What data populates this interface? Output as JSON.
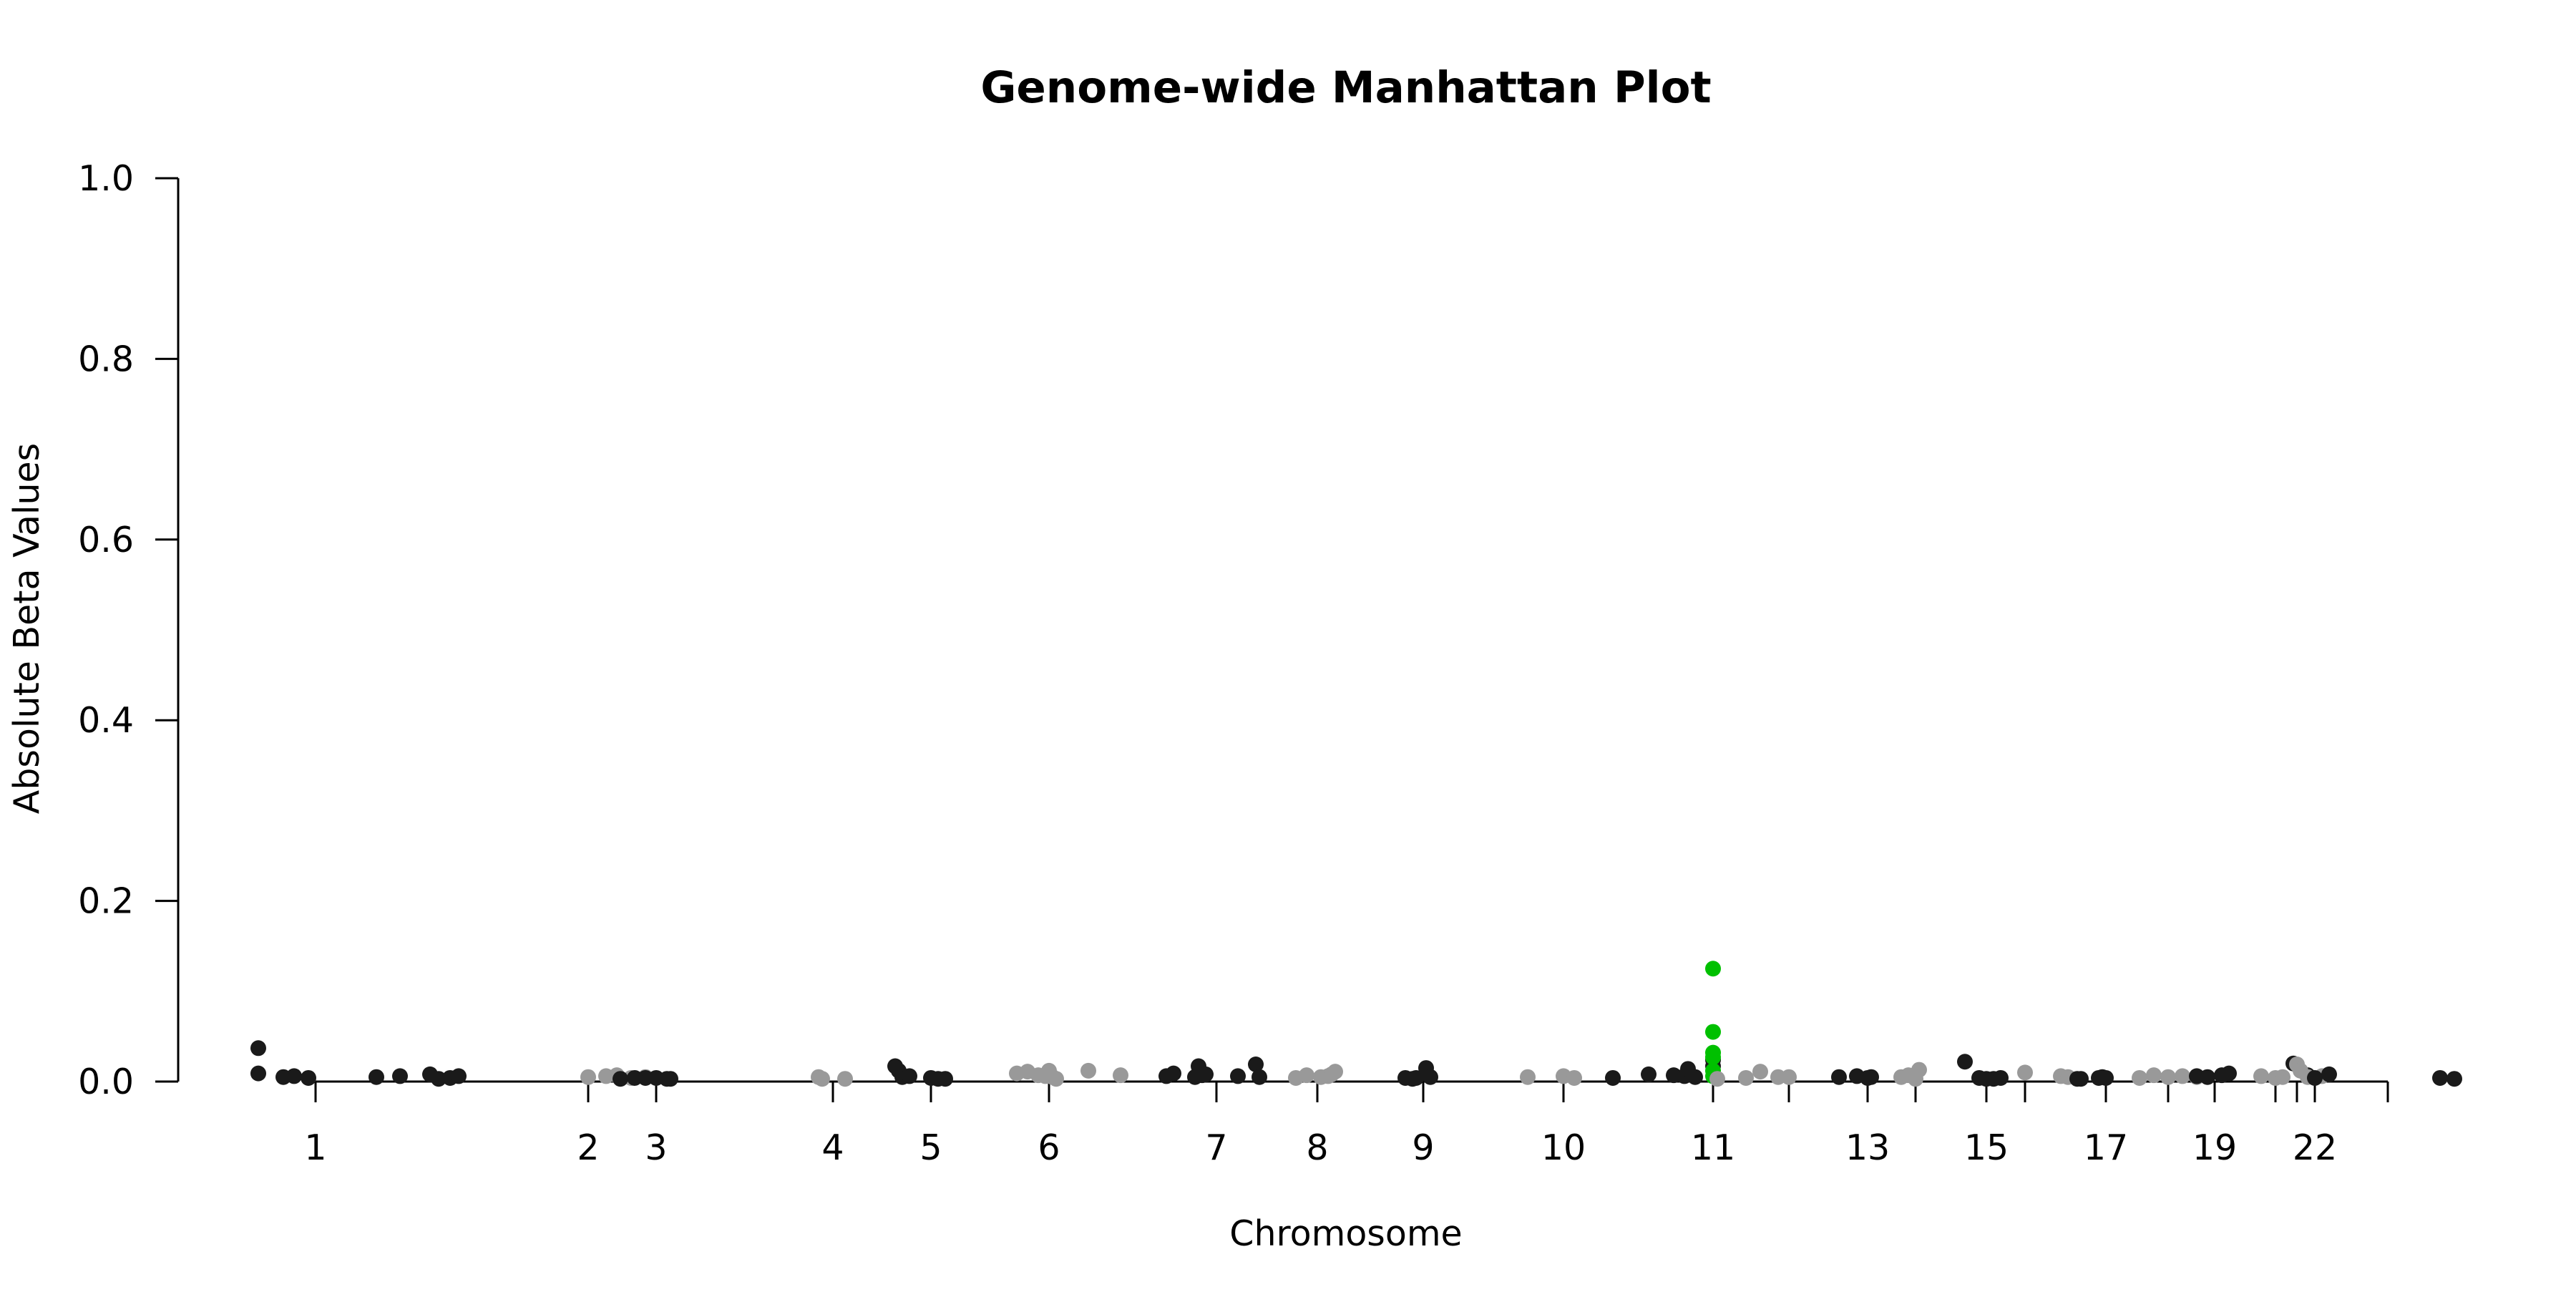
{
  "chart_data": {
    "type": "scatter",
    "title": "Genome-wide Manhattan Plot",
    "xlabel": "Chromosome",
    "ylabel": "Absolute Beta Values",
    "ylim": [
      0,
      1
    ],
    "y_ticks": [
      "0.0",
      "0.2",
      "0.4",
      "0.6",
      "0.8",
      "1.0"
    ],
    "x_tick_labels": [
      "1",
      "2",
      "3",
      "4",
      "5",
      "6",
      "7",
      "8",
      "9",
      "10",
      "11",
      "13",
      "15",
      "17",
      "19",
      "22"
    ],
    "x_tick_marks": 22,
    "grid": false,
    "legend": "none",
    "colors": {
      "odd_chromosomes": "#1a1a1a",
      "even_chromosomes": "#999999",
      "highlight": "#00c000"
    },
    "points": [
      {
        "chr": "1",
        "y": 0.037,
        "group": "odd"
      },
      {
        "chr": "1",
        "y": 0.009,
        "group": "odd"
      },
      {
        "chr": "1",
        "y": 0.005,
        "group": "odd"
      },
      {
        "chr": "1",
        "y": 0.006,
        "group": "odd"
      },
      {
        "chr": "1",
        "y": 0.004,
        "group": "odd"
      },
      {
        "chr": "1",
        "y": 0.005,
        "group": "odd"
      },
      {
        "chr": "1",
        "y": 0.006,
        "group": "odd"
      },
      {
        "chr": "1",
        "y": 0.008,
        "group": "odd"
      },
      {
        "chr": "1",
        "y": 0.003,
        "group": "odd"
      },
      {
        "chr": "1",
        "y": 0.004,
        "group": "odd"
      },
      {
        "chr": "1",
        "y": 0.006,
        "group": "odd"
      },
      {
        "chr": "2",
        "y": 0.005,
        "group": "even"
      },
      {
        "chr": "2",
        "y": 0.006,
        "group": "even"
      },
      {
        "chr": "2",
        "y": 0.007,
        "group": "even"
      },
      {
        "chr": "2",
        "y": 0.004,
        "group": "even"
      },
      {
        "chr": "2",
        "y": 0.005,
        "group": "even"
      },
      {
        "chr": "3",
        "y": 0.004,
        "group": "odd"
      },
      {
        "chr": "3",
        "y": 0.004,
        "group": "odd"
      },
      {
        "chr": "3",
        "y": 0.003,
        "group": "odd"
      },
      {
        "chr": "3",
        "y": 0.004,
        "group": "odd"
      },
      {
        "chr": "3",
        "y": 0.003,
        "group": "odd"
      },
      {
        "chr": "3",
        "y": 0.003,
        "group": "odd"
      },
      {
        "chr": "4",
        "y": 0.005,
        "group": "even"
      },
      {
        "chr": "4",
        "y": 0.003,
        "group": "even"
      },
      {
        "chr": "4",
        "y": 0.003,
        "group": "even"
      },
      {
        "chr": "5",
        "y": 0.017,
        "group": "odd"
      },
      {
        "chr": "5",
        "y": 0.012,
        "group": "odd"
      },
      {
        "chr": "5",
        "y": 0.005,
        "group": "odd"
      },
      {
        "chr": "5",
        "y": 0.006,
        "group": "odd"
      },
      {
        "chr": "5",
        "y": 0.004,
        "group": "odd"
      },
      {
        "chr": "5",
        "y": 0.003,
        "group": "odd"
      },
      {
        "chr": "5",
        "y": 0.003,
        "group": "odd"
      },
      {
        "chr": "6",
        "y": 0.009,
        "group": "even"
      },
      {
        "chr": "6",
        "y": 0.011,
        "group": "even"
      },
      {
        "chr": "6",
        "y": 0.007,
        "group": "even"
      },
      {
        "chr": "6",
        "y": 0.012,
        "group": "even"
      },
      {
        "chr": "6",
        "y": 0.005,
        "group": "even"
      },
      {
        "chr": "6",
        "y": 0.003,
        "group": "even"
      },
      {
        "chr": "6",
        "y": 0.006,
        "group": "even"
      },
      {
        "chr": "6",
        "y": 0.012,
        "group": "even"
      },
      {
        "chr": "6",
        "y": 0.007,
        "group": "even"
      },
      {
        "chr": "7",
        "y": 0.006,
        "group": "odd"
      },
      {
        "chr": "7",
        "y": 0.009,
        "group": "odd"
      },
      {
        "chr": "7",
        "y": 0.005,
        "group": "odd"
      },
      {
        "chr": "7",
        "y": 0.017,
        "group": "odd"
      },
      {
        "chr": "7",
        "y": 0.007,
        "group": "odd"
      },
      {
        "chr": "7",
        "y": 0.008,
        "group": "odd"
      },
      {
        "chr": "7",
        "y": 0.006,
        "group": "odd"
      },
      {
        "chr": "7",
        "y": 0.019,
        "group": "odd"
      },
      {
        "chr": "7",
        "y": 0.005,
        "group": "odd"
      },
      {
        "chr": "8",
        "y": 0.004,
        "group": "even"
      },
      {
        "chr": "8",
        "y": 0.007,
        "group": "even"
      },
      {
        "chr": "8",
        "y": 0.005,
        "group": "even"
      },
      {
        "chr": "8",
        "y": 0.006,
        "group": "even"
      },
      {
        "chr": "8",
        "y": 0.008,
        "group": "even"
      },
      {
        "chr": "8",
        "y": 0.011,
        "group": "even"
      },
      {
        "chr": "9",
        "y": 0.004,
        "group": "odd"
      },
      {
        "chr": "9",
        "y": 0.003,
        "group": "odd"
      },
      {
        "chr": "9",
        "y": 0.015,
        "group": "odd"
      },
      {
        "chr": "9",
        "y": 0.005,
        "group": "odd"
      },
      {
        "chr": "9",
        "y": 0.004,
        "group": "odd"
      },
      {
        "chr": "10",
        "y": 0.005,
        "group": "even"
      },
      {
        "chr": "10",
        "y": 0.006,
        "group": "even"
      },
      {
        "chr": "10",
        "y": 0.004,
        "group": "even"
      },
      {
        "chr": "11",
        "y": 0.004,
        "group": "odd"
      },
      {
        "chr": "11",
        "y": 0.008,
        "group": "odd"
      },
      {
        "chr": "11",
        "y": 0.007,
        "group": "odd"
      },
      {
        "chr": "11",
        "y": 0.006,
        "group": "odd"
      },
      {
        "chr": "11",
        "y": 0.014,
        "group": "odd"
      },
      {
        "chr": "11",
        "y": 0.005,
        "group": "odd"
      },
      {
        "chr": "11",
        "y": 0.024,
        "group": "odd"
      },
      {
        "chr": "11",
        "y": 0.017,
        "group": "odd"
      },
      {
        "chr": "11",
        "y": 0.125,
        "group": "highlight"
      },
      {
        "chr": "11",
        "y": 0.055,
        "group": "highlight"
      },
      {
        "chr": "11",
        "y": 0.032,
        "group": "highlight"
      },
      {
        "chr": "11",
        "y": 0.027,
        "group": "highlight"
      },
      {
        "chr": "11",
        "y": 0.012,
        "group": "highlight"
      },
      {
        "chr": "11",
        "y": 0.006,
        "group": "highlight"
      },
      {
        "chr": "12",
        "y": 0.011,
        "group": "even"
      },
      {
        "chr": "12",
        "y": 0.005,
        "group": "even"
      },
      {
        "chr": "12",
        "y": 0.004,
        "group": "even"
      },
      {
        "chr": "12",
        "y": 0.003,
        "group": "even"
      },
      {
        "chr": "12",
        "y": 0.005,
        "group": "even"
      },
      {
        "chr": "13",
        "y": 0.005,
        "group": "odd"
      },
      {
        "chr": "13",
        "y": 0.006,
        "group": "odd"
      },
      {
        "chr": "13",
        "y": 0.004,
        "group": "odd"
      },
      {
        "chr": "13",
        "y": 0.005,
        "group": "odd"
      },
      {
        "chr": "14",
        "y": 0.003,
        "group": "even"
      },
      {
        "chr": "14",
        "y": 0.005,
        "group": "even"
      },
      {
        "chr": "14",
        "y": 0.007,
        "group": "even"
      },
      {
        "chr": "14",
        "y": 0.013,
        "group": "even"
      },
      {
        "chr": "15",
        "y": 0.022,
        "group": "odd"
      },
      {
        "chr": "15",
        "y": 0.004,
        "group": "odd"
      },
      {
        "chr": "15",
        "y": 0.003,
        "group": "odd"
      },
      {
        "chr": "15",
        "y": 0.004,
        "group": "odd"
      },
      {
        "chr": "15",
        "y": 0.003,
        "group": "odd"
      },
      {
        "chr": "16",
        "y": 0.01,
        "group": "even"
      },
      {
        "chr": "16",
        "y": 0.006,
        "group": "even"
      },
      {
        "chr": "16",
        "y": 0.005,
        "group": "even"
      },
      {
        "chr": "17",
        "y": 0.003,
        "group": "odd"
      },
      {
        "chr": "17",
        "y": 0.004,
        "group": "odd"
      },
      {
        "chr": "17",
        "y": 0.003,
        "group": "odd"
      },
      {
        "chr": "17",
        "y": 0.005,
        "group": "odd"
      },
      {
        "chr": "17",
        "y": 0.004,
        "group": "odd"
      },
      {
        "chr": "18",
        "y": 0.007,
        "group": "even"
      },
      {
        "chr": "18",
        "y": 0.005,
        "group": "even"
      },
      {
        "chr": "18",
        "y": 0.006,
        "group": "even"
      },
      {
        "chr": "18",
        "y": 0.004,
        "group": "even"
      },
      {
        "chr": "18",
        "y": 0.005,
        "group": "even"
      },
      {
        "chr": "19",
        "y": 0.005,
        "group": "odd"
      },
      {
        "chr": "19",
        "y": 0.007,
        "group": "odd"
      },
      {
        "chr": "19",
        "y": 0.009,
        "group": "odd"
      },
      {
        "chr": "19",
        "y": 0.006,
        "group": "odd"
      },
      {
        "chr": "20",
        "y": 0.006,
        "group": "even"
      },
      {
        "chr": "20",
        "y": 0.004,
        "group": "even"
      },
      {
        "chr": "20",
        "y": 0.005,
        "group": "even"
      },
      {
        "chr": "21",
        "y": 0.02,
        "group": "odd"
      },
      {
        "chr": "21",
        "y": 0.007,
        "group": "odd"
      },
      {
        "chr": "21",
        "y": 0.019,
        "group": "even"
      },
      {
        "chr": "21",
        "y": 0.012,
        "group": "even"
      },
      {
        "chr": "22",
        "y": 0.005,
        "group": "even"
      },
      {
        "chr": "22",
        "y": 0.006,
        "group": "even"
      },
      {
        "chr": "22",
        "y": 0.004,
        "group": "odd"
      },
      {
        "chr": "22",
        "y": 0.008,
        "group": "odd"
      },
      {
        "chr": "X",
        "y": 0.004,
        "group": "odd"
      },
      {
        "chr": "X",
        "y": 0.003,
        "group": "odd"
      }
    ]
  }
}
